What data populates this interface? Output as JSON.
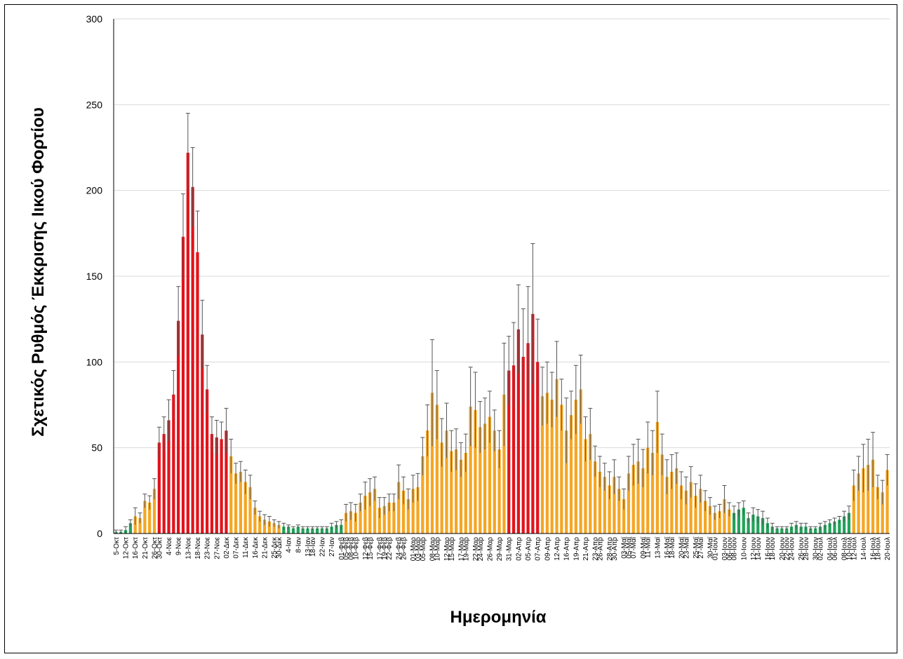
{
  "chart_data": {
    "type": "bar",
    "title": "",
    "xlabel": "Ημερομηνία",
    "ylabel": "Σχετικός Ρυθμός Έκκρισης Ιικού Φορτίου",
    "ylim": [
      0,
      300
    ],
    "yticks": [
      0,
      50,
      100,
      150,
      200,
      250,
      300
    ],
    "grid": true,
    "error_bars": true,
    "colors": {
      "low": "#22a35a",
      "medium": "#f5a623",
      "high": "#e3131b",
      "errorbar": "#555555",
      "grid": "#d9d9d9"
    },
    "points": [
      {
        "d": "5-Οκτ",
        "v": 1,
        "e": 1,
        "c": "low"
      },
      {
        "d": "",
        "v": 1,
        "e": 1,
        "c": "low"
      },
      {
        "d": "12-Οκτ",
        "v": 2,
        "e": 2,
        "c": "low"
      },
      {
        "d": "",
        "v": 6,
        "e": 2,
        "c": "low"
      },
      {
        "d": "16-Οκτ",
        "v": 10,
        "e": 5,
        "c": "medium"
      },
      {
        "d": "",
        "v": 9,
        "e": 3,
        "c": "medium"
      },
      {
        "d": "21-Οκτ",
        "v": 19,
        "e": 4,
        "c": "medium"
      },
      {
        "d": "",
        "v": 18,
        "e": 4,
        "c": "medium"
      },
      {
        "d": "26-Οκτ",
        "v": 26,
        "e": 6,
        "c": "medium"
      },
      {
        "d": "30-Οκτ",
        "v": 53,
        "e": 9,
        "c": "high"
      },
      {
        "d": "",
        "v": 58,
        "e": 10,
        "c": "high"
      },
      {
        "d": "4-Νοε",
        "v": 66,
        "e": 12,
        "c": "high"
      },
      {
        "d": "",
        "v": 81,
        "e": 14,
        "c": "high"
      },
      {
        "d": "9-Νοε",
        "v": 124,
        "e": 20,
        "c": "high"
      },
      {
        "d": "",
        "v": 173,
        "e": 25,
        "c": "high"
      },
      {
        "d": "13-Νοε",
        "v": 222,
        "e": 23,
        "c": "high"
      },
      {
        "d": "",
        "v": 202,
        "e": 23,
        "c": "high"
      },
      {
        "d": "18-Νοε",
        "v": 164,
        "e": 24,
        "c": "high"
      },
      {
        "d": "",
        "v": 116,
        "e": 20,
        "c": "high"
      },
      {
        "d": "23-Νοε",
        "v": 84,
        "e": 14,
        "c": "high"
      },
      {
        "d": "",
        "v": 58,
        "e": 10,
        "c": "high"
      },
      {
        "d": "27-Νοε",
        "v": 56,
        "e": 10,
        "c": "high"
      },
      {
        "d": "",
        "v": 55,
        "e": 10,
        "c": "high"
      },
      {
        "d": "02-Δεκ",
        "v": 60,
        "e": 13,
        "c": "high"
      },
      {
        "d": "",
        "v": 45,
        "e": 10,
        "c": "medium"
      },
      {
        "d": "07-Δεκ",
        "v": 35,
        "e": 6,
        "c": "medium"
      },
      {
        "d": "",
        "v": 36,
        "e": 6,
        "c": "medium"
      },
      {
        "d": "11-Δεκ",
        "v": 30,
        "e": 7,
        "c": "medium"
      },
      {
        "d": "",
        "v": 27,
        "e": 7,
        "c": "medium"
      },
      {
        "d": "16-Δεκ",
        "v": 15,
        "e": 4,
        "c": "medium"
      },
      {
        "d": "",
        "v": 10,
        "e": 3,
        "c": "medium"
      },
      {
        "d": "21-Δεκ",
        "v": 8,
        "e": 3,
        "c": "medium"
      },
      {
        "d": "",
        "v": 7,
        "e": 3,
        "c": "medium"
      },
      {
        "d": "25-Δεκ",
        "v": 6,
        "e": 2,
        "c": "medium"
      },
      {
        "d": "30-Δεκ",
        "v": 5,
        "e": 2,
        "c": "medium"
      },
      {
        "d": "",
        "v": 4,
        "e": 2,
        "c": "low"
      },
      {
        "d": "4-Ιαν",
        "v": 4,
        "e": 1,
        "c": "low"
      },
      {
        "d": "",
        "v": 3,
        "e": 1,
        "c": "low"
      },
      {
        "d": "8-Ιαν",
        "v": 4,
        "e": 1,
        "c": "low"
      },
      {
        "d": "",
        "v": 3,
        "e": 1,
        "c": "low"
      },
      {
        "d": "13-Ιαν",
        "v": 3,
        "e": 1,
        "c": "low"
      },
      {
        "d": "18-Ιαν",
        "v": 3,
        "e": 1,
        "c": "low"
      },
      {
        "d": "",
        "v": 3,
        "e": 1,
        "c": "low"
      },
      {
        "d": "22-Ιαν",
        "v": 3,
        "e": 1,
        "c": "low"
      },
      {
        "d": "",
        "v": 3,
        "e": 1,
        "c": "low"
      },
      {
        "d": "27-Ιαν",
        "v": 4,
        "e": 2,
        "c": "low"
      },
      {
        "d": "",
        "v": 5,
        "e": 2,
        "c": "low"
      },
      {
        "d": "01-Φεβ",
        "v": 5,
        "e": 3,
        "c": "low"
      },
      {
        "d": "05-Φεβ",
        "v": 12,
        "e": 5,
        "c": "medium"
      },
      {
        "d": "08-Φεβ",
        "v": 13,
        "e": 5,
        "c": "medium"
      },
      {
        "d": "10-Φεβ",
        "v": 12,
        "e": 5,
        "c": "medium"
      },
      {
        "d": "",
        "v": 18,
        "e": 5,
        "c": "medium"
      },
      {
        "d": "12-Φεβ",
        "v": 22,
        "e": 8,
        "c": "medium"
      },
      {
        "d": "15-Φεβ",
        "v": 24,
        "e": 8,
        "c": "medium"
      },
      {
        "d": "",
        "v": 26,
        "e": 7,
        "c": "medium"
      },
      {
        "d": "17-Φεβ",
        "v": 15,
        "e": 6,
        "c": "medium"
      },
      {
        "d": "19-Φεβ",
        "v": 16,
        "e": 5,
        "c": "medium"
      },
      {
        "d": "22-Φεβ",
        "v": 18,
        "e": 5,
        "c": "medium"
      },
      {
        "d": "",
        "v": 18,
        "e": 5,
        "c": "medium"
      },
      {
        "d": "24-Φεβ",
        "v": 30,
        "e": 10,
        "c": "medium"
      },
      {
        "d": "26-Φεβ",
        "v": 25,
        "e": 8,
        "c": "medium"
      },
      {
        "d": "",
        "v": 20,
        "e": 6,
        "c": "medium"
      },
      {
        "d": "01-Μαρ",
        "v": 26,
        "e": 8,
        "c": "medium"
      },
      {
        "d": "03-Μαρ",
        "v": 27,
        "e": 8,
        "c": "medium"
      },
      {
        "d": "05-Μαρ",
        "v": 45,
        "e": 11,
        "c": "medium"
      },
      {
        "d": "",
        "v": 60,
        "e": 15,
        "c": "medium"
      },
      {
        "d": "08-Μαρ",
        "v": 82,
        "e": 31,
        "c": "medium"
      },
      {
        "d": "10-Μαρ",
        "v": 75,
        "e": 20,
        "c": "medium"
      },
      {
        "d": "",
        "v": 53,
        "e": 14,
        "c": "medium"
      },
      {
        "d": "12-Μαρ",
        "v": 60,
        "e": 16,
        "c": "medium"
      },
      {
        "d": "15-Μαρ",
        "v": 48,
        "e": 12,
        "c": "medium"
      },
      {
        "d": "",
        "v": 49,
        "e": 12,
        "c": "medium"
      },
      {
        "d": "17-Μαρ",
        "v": 43,
        "e": 10,
        "c": "medium"
      },
      {
        "d": "19-Μαρ",
        "v": 47,
        "e": 11,
        "c": "medium"
      },
      {
        "d": "",
        "v": 74,
        "e": 23,
        "c": "medium"
      },
      {
        "d": "22-Μαρ",
        "v": 72,
        "e": 22,
        "c": "medium"
      },
      {
        "d": "24-Μαρ",
        "v": 62,
        "e": 15,
        "c": "medium"
      },
      {
        "d": "",
        "v": 64,
        "e": 15,
        "c": "medium"
      },
      {
        "d": "26-Μαρ",
        "v": 68,
        "e": 15,
        "c": "medium"
      },
      {
        "d": "",
        "v": 60,
        "e": 12,
        "c": "medium"
      },
      {
        "d": "29-Μαρ",
        "v": 49,
        "e": 11,
        "c": "medium"
      },
      {
        "d": "",
        "v": 81,
        "e": 30,
        "c": "medium"
      },
      {
        "d": "31-Μαρ",
        "v": 95,
        "e": 20,
        "c": "high"
      },
      {
        "d": "",
        "v": 98,
        "e": 25,
        "c": "high"
      },
      {
        "d": "02-Απρ",
        "v": 119,
        "e": 26,
        "c": "high"
      },
      {
        "d": "",
        "v": 103,
        "e": 28,
        "c": "high"
      },
      {
        "d": "05-Απρ",
        "v": 111,
        "e": 33,
        "c": "high"
      },
      {
        "d": "",
        "v": 128,
        "e": 41,
        "c": "high"
      },
      {
        "d": "07-Απρ",
        "v": 100,
        "e": 25,
        "c": "high"
      },
      {
        "d": "",
        "v": 80,
        "e": 17,
        "c": "medium"
      },
      {
        "d": "09-Απρ",
        "v": 82,
        "e": 18,
        "c": "medium"
      },
      {
        "d": "",
        "v": 78,
        "e": 16,
        "c": "medium"
      },
      {
        "d": "12-Απρ",
        "v": 90,
        "e": 22,
        "c": "medium"
      },
      {
        "d": "",
        "v": 75,
        "e": 15,
        "c": "medium"
      },
      {
        "d": "16-Απρ",
        "v": 60,
        "e": 19,
        "c": "medium"
      },
      {
        "d": "",
        "v": 69,
        "e": 14,
        "c": "medium"
      },
      {
        "d": "19-Απρ",
        "v": 78,
        "e": 20,
        "c": "medium"
      },
      {
        "d": "",
        "v": 84,
        "e": 20,
        "c": "medium"
      },
      {
        "d": "21-Απρ",
        "v": 55,
        "e": 13,
        "c": "medium"
      },
      {
        "d": "",
        "v": 58,
        "e": 15,
        "c": "medium"
      },
      {
        "d": "23-Απρ",
        "v": 42,
        "e": 9,
        "c": "medium"
      },
      {
        "d": "26-Απρ",
        "v": 36,
        "e": 9,
        "c": "medium"
      },
      {
        "d": "",
        "v": 33,
        "e": 8,
        "c": "medium"
      },
      {
        "d": "28-Απρ",
        "v": 28,
        "e": 8,
        "c": "medium"
      },
      {
        "d": "30-Απρ",
        "v": 33,
        "e": 10,
        "c": "medium"
      },
      {
        "d": "",
        "v": 26,
        "e": 7,
        "c": "medium"
      },
      {
        "d": "03-Μαϊ",
        "v": 20,
        "e": 6,
        "c": "medium"
      },
      {
        "d": "05-Μαϊ",
        "v": 35,
        "e": 10,
        "c": "medium"
      },
      {
        "d": "07-Μαϊ",
        "v": 40,
        "e": 12,
        "c": "medium"
      },
      {
        "d": "",
        "v": 42,
        "e": 13,
        "c": "medium"
      },
      {
        "d": "09-Μαϊ",
        "v": 38,
        "e": 11,
        "c": "medium"
      },
      {
        "d": "11-Μαϊ",
        "v": 50,
        "e": 15,
        "c": "medium"
      },
      {
        "d": "",
        "v": 47,
        "e": 13,
        "c": "medium"
      },
      {
        "d": "13-Μαϊ",
        "v": 65,
        "e": 18,
        "c": "medium"
      },
      {
        "d": "",
        "v": 46,
        "e": 12,
        "c": "medium"
      },
      {
        "d": "16-Μαϊ",
        "v": 33,
        "e": 10,
        "c": "medium"
      },
      {
        "d": "18-Μαϊ",
        "v": 36,
        "e": 10,
        "c": "medium"
      },
      {
        "d": "",
        "v": 38,
        "e": 9,
        "c": "medium"
      },
      {
        "d": "20-Μαϊ",
        "v": 28,
        "e": 8,
        "c": "medium"
      },
      {
        "d": "23-Μαϊ",
        "v": 25,
        "e": 8,
        "c": "medium"
      },
      {
        "d": "",
        "v": 30,
        "e": 9,
        "c": "medium"
      },
      {
        "d": "25-Μαϊ",
        "v": 22,
        "e": 7,
        "c": "medium"
      },
      {
        "d": "27-Μαϊ",
        "v": 26,
        "e": 8,
        "c": "medium"
      },
      {
        "d": "",
        "v": 19,
        "e": 6,
        "c": "medium"
      },
      {
        "d": "30-Μαϊ",
        "v": 16,
        "e": 5,
        "c": "medium"
      },
      {
        "d": "01-Ιουν",
        "v": 12,
        "e": 4,
        "c": "medium"
      },
      {
        "d": "",
        "v": 13,
        "e": 4,
        "c": "medium"
      },
      {
        "d": "03-Ιουν",
        "v": 20,
        "e": 8,
        "c": "medium"
      },
      {
        "d": "06-Ιουν",
        "v": 14,
        "e": 4,
        "c": "medium"
      },
      {
        "d": "08-Ιουν",
        "v": 12,
        "e": 4,
        "c": "low"
      },
      {
        "d": "",
        "v": 14,
        "e": 4,
        "c": "low"
      },
      {
        "d": "10-Ιουν",
        "v": 15,
        "e": 4,
        "c": "low"
      },
      {
        "d": "",
        "v": 9,
        "e": 3,
        "c": "low"
      },
      {
        "d": "12-Ιουν",
        "v": 11,
        "e": 4,
        "c": "low"
      },
      {
        "d": "14-Ιουν",
        "v": 10,
        "e": 4,
        "c": "low"
      },
      {
        "d": "",
        "v": 9,
        "e": 4,
        "c": "low"
      },
      {
        "d": "16-Ιουν",
        "v": 6,
        "e": 3,
        "c": "low"
      },
      {
        "d": "18-Ιουν",
        "v": 4,
        "e": 2,
        "c": "low"
      },
      {
        "d": "",
        "v": 3,
        "e": 1,
        "c": "low"
      },
      {
        "d": "20-Ιουν",
        "v": 3,
        "e": 1,
        "c": "low"
      },
      {
        "d": "22-Ιουν",
        "v": 3,
        "e": 1,
        "c": "low"
      },
      {
        "d": "24-Ιουν",
        "v": 4,
        "e": 2,
        "c": "low"
      },
      {
        "d": "",
        "v": 5,
        "e": 2,
        "c": "low"
      },
      {
        "d": "26-Ιουν",
        "v": 4,
        "e": 2,
        "c": "low"
      },
      {
        "d": "28-Ιουν",
        "v": 4,
        "e": 2,
        "c": "low"
      },
      {
        "d": "",
        "v": 3,
        "e": 1,
        "c": "low"
      },
      {
        "d": "30-Ιουν",
        "v": 3,
        "e": 1,
        "c": "low"
      },
      {
        "d": "02-Ιουλ",
        "v": 4,
        "e": 2,
        "c": "low"
      },
      {
        "d": "",
        "v": 5,
        "e": 2,
        "c": "low"
      },
      {
        "d": "04-Ιουλ",
        "v": 6,
        "e": 2,
        "c": "low"
      },
      {
        "d": "06-Ιουλ",
        "v": 7,
        "e": 2,
        "c": "low"
      },
      {
        "d": "",
        "v": 8,
        "e": 2,
        "c": "low"
      },
      {
        "d": "08-Ιουλ",
        "v": 10,
        "e": 3,
        "c": "low"
      },
      {
        "d": "10-Ιουλ",
        "v": 12,
        "e": 4,
        "c": "low"
      },
      {
        "d": "12-Ιουλ",
        "v": 28,
        "e": 9,
        "c": "medium"
      },
      {
        "d": "",
        "v": 35,
        "e": 10,
        "c": "medium"
      },
      {
        "d": "14-Ιουλ",
        "v": 38,
        "e": 14,
        "c": "medium"
      },
      {
        "d": "",
        "v": 40,
        "e": 15,
        "c": "medium"
      },
      {
        "d": "16-Ιουλ",
        "v": 43,
        "e": 16,
        "c": "medium"
      },
      {
        "d": "18-Ιουλ",
        "v": 27,
        "e": 7,
        "c": "medium"
      },
      {
        "d": "",
        "v": 24,
        "e": 7,
        "c": "medium"
      },
      {
        "d": "20-Ιουλ",
        "v": 37,
        "e": 9,
        "c": "medium"
      }
    ]
  }
}
